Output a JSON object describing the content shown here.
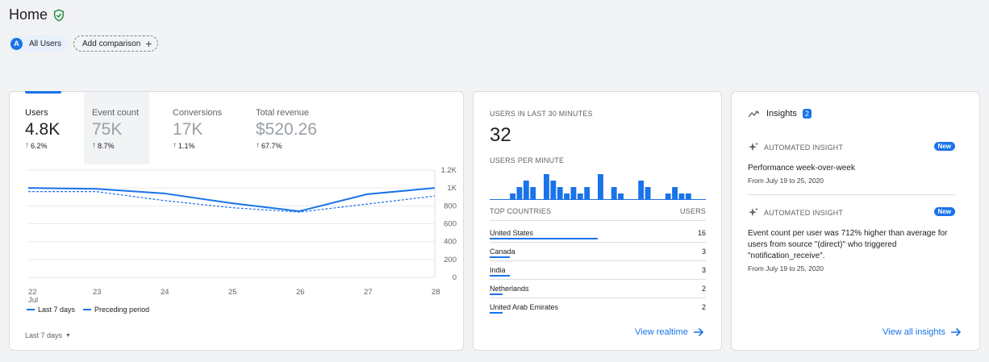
{
  "header": {
    "title": "Home",
    "verified_icon": "shield-check-icon"
  },
  "comparison": {
    "avatar_letter": "A",
    "segment_label": "All Users",
    "add_label": "Add comparison"
  },
  "overview": {
    "metrics": [
      {
        "label": "Users",
        "value": "4.8K",
        "change": "6.2%"
      },
      {
        "label": "Event count",
        "value": "75K",
        "change": "8.7%"
      },
      {
        "label": "Conversions",
        "value": "17K",
        "change": "1.1%"
      },
      {
        "label": "Total revenue",
        "value": "$520.26",
        "change": "67.7%"
      }
    ],
    "legend": {
      "current": "Last 7 days",
      "previous": "Preceding period"
    },
    "date_range": "Last 7 days"
  },
  "chart_data": {
    "type": "line",
    "x": [
      "22",
      "23",
      "24",
      "25",
      "26",
      "27",
      "28"
    ],
    "x_sublabel": "Jul",
    "y_ticks": [
      "1.2K",
      "1K",
      "800",
      "600",
      "400",
      "200",
      "0"
    ],
    "ylim": [
      0,
      1200
    ],
    "series": [
      {
        "name": "Last 7 days",
        "style": "solid",
        "values": [
          1000,
          990,
          940,
          830,
          740,
          930,
          1000
        ]
      },
      {
        "name": "Preceding period",
        "style": "dashed",
        "values": [
          960,
          960,
          860,
          780,
          730,
          820,
          910
        ]
      }
    ],
    "grid": true,
    "legend_position": "bottom-left",
    "color": "#1a73e8"
  },
  "realtime": {
    "title": "USERS IN LAST 30 MINUTES",
    "value": "32",
    "per_minute_label": "USERS PER MINUTE",
    "per_minute": [
      0,
      0,
      0,
      1,
      2,
      3,
      2,
      0,
      4,
      3,
      2,
      1,
      2,
      1,
      2,
      0,
      4,
      0,
      2,
      1,
      0,
      0,
      3,
      2,
      0,
      0,
      1,
      2,
      1,
      1,
      0,
      0
    ],
    "table_head": {
      "left": "TOP COUNTRIES",
      "right": "USERS"
    },
    "countries": [
      {
        "name": "United States",
        "users": "16",
        "share": 1.0
      },
      {
        "name": "Canada",
        "users": "3",
        "share": 0.19
      },
      {
        "name": "India",
        "users": "3",
        "share": 0.19
      },
      {
        "name": "Netherlands",
        "users": "2",
        "share": 0.12
      },
      {
        "name": "United Arab Emirates",
        "users": "2",
        "share": 0.12
      }
    ],
    "link": "View realtime"
  },
  "insights": {
    "title": "Insights",
    "count": "2",
    "items": [
      {
        "tag": "AUTOMATED INSIGHT",
        "badge": "New",
        "title": "Performance week-over-week",
        "date": "From July 19 to 25, 2020"
      },
      {
        "tag": "AUTOMATED INSIGHT",
        "badge": "New",
        "title": "Event count per user was 712% higher than average for users from source \"(direct)\" who triggered \"notification_receive\".",
        "date": "From July 19 to 25, 2020"
      }
    ],
    "link": "View all insights"
  },
  "colors": {
    "accent": "#1a73e8",
    "positive": "#137333",
    "background": "#f1f3f4"
  }
}
